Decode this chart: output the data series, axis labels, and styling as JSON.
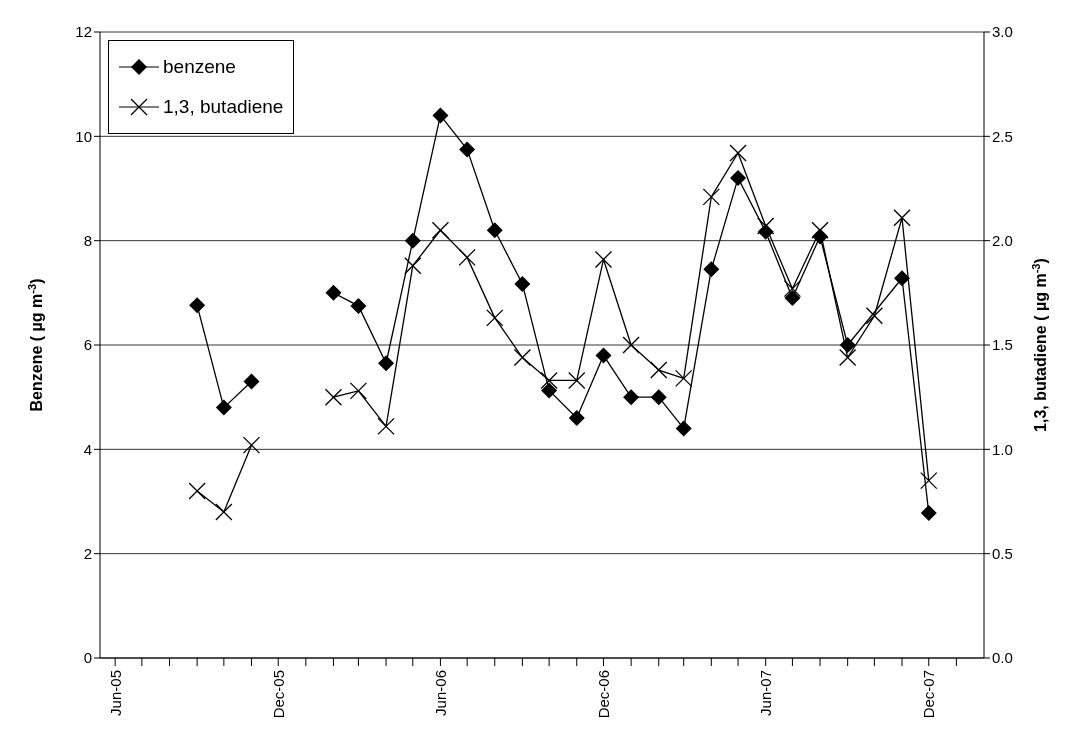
{
  "chart_data": {
    "type": "line",
    "ylabel": "Benzene ( µg m$^{-3}$)",
    "y2label": "1,3, butadiene ( µg m$^{-3}$)",
    "xlim": [
      "2005-05-15",
      "2008-02-01"
    ],
    "xticks": [
      {
        "value": "2005-06",
        "label": "Jun-05"
      },
      {
        "value": "2005-07",
        "label": null
      },
      {
        "value": "2005-08",
        "label": null
      },
      {
        "value": "2005-09",
        "label": null
      },
      {
        "value": "2005-10",
        "label": null
      },
      {
        "value": "2005-11",
        "label": null
      },
      {
        "value": "2005-12",
        "label": "Dec-05"
      },
      {
        "value": "2006-01",
        "label": null
      },
      {
        "value": "2006-02",
        "label": null
      },
      {
        "value": "2006-03",
        "label": null
      },
      {
        "value": "2006-04",
        "label": null
      },
      {
        "value": "2006-05",
        "label": null
      },
      {
        "value": "2006-06",
        "label": "Jun-06"
      },
      {
        "value": "2006-07",
        "label": null
      },
      {
        "value": "2006-08",
        "label": null
      },
      {
        "value": "2006-09",
        "label": null
      },
      {
        "value": "2006-10",
        "label": null
      },
      {
        "value": "2006-11",
        "label": null
      },
      {
        "value": "2006-12",
        "label": "Dec-06"
      },
      {
        "value": "2007-01",
        "label": null
      },
      {
        "value": "2007-02",
        "label": null
      },
      {
        "value": "2007-03",
        "label": null
      },
      {
        "value": "2007-04",
        "label": null
      },
      {
        "value": "2007-05",
        "label": null
      },
      {
        "value": "2007-06",
        "label": "Jun-07"
      },
      {
        "value": "2007-07",
        "label": null
      },
      {
        "value": "2007-08",
        "label": null
      },
      {
        "value": "2007-09",
        "label": null
      },
      {
        "value": "2007-10",
        "label": null
      },
      {
        "value": "2007-11",
        "label": null
      },
      {
        "value": "2007-12",
        "label": "Dec-07"
      },
      {
        "value": "2008-01",
        "label": null
      }
    ],
    "ylim": [
      0,
      12
    ],
    "yticks": [
      0,
      2,
      4,
      6,
      8,
      10,
      12
    ],
    "y2lim": [
      0,
      3
    ],
    "y2ticks": [
      {
        "value": 0,
        "label": "0.0"
      },
      {
        "value": 0.5,
        "label": "0.5"
      },
      {
        "value": 1,
        "label": "1.0"
      },
      {
        "value": 1.5,
        "label": "1.5"
      },
      {
        "value": 2,
        "label": "2.0"
      },
      {
        "value": 2.5,
        "label": "2.5"
      },
      {
        "value": 3,
        "label": "3.0"
      }
    ],
    "grid": "y",
    "legend": "top left",
    "line_style": "solid",
    "series": [
      {
        "name": "benzene",
        "color": "#000000",
        "marker": "diamond",
        "x": [
          "2005-09",
          "2005-10",
          "2005-11",
          "2006-01",
          "2006-02",
          "2006-03",
          "2006-04",
          "2006-05",
          "2006-06",
          "2006-07",
          "2006-08",
          "2006-09",
          "2006-10",
          "2006-11",
          "2006-12",
          "2007-01",
          "2007-02",
          "2007-03",
          "2007-04",
          "2007-05",
          "2007-06",
          "2007-07",
          "2007-08",
          "2007-09",
          "2007-11",
          "2007-12"
        ],
        "values": [
          6.76,
          4.8,
          5.3,
          null,
          7.0,
          6.75,
          5.65,
          8.0,
          10.4,
          9.75,
          8.2,
          7.17,
          5.13,
          4.6,
          5.8,
          5.0,
          5.0,
          4.4,
          7.45,
          9.2,
          8.17,
          6.9,
          8.08,
          6.0,
          7.28,
          2.78
        ]
      },
      {
        "name": "1,3, butadiene",
        "color": "#000000",
        "marker": "cross",
        "axis": "y2",
        "x": [
          "2005-09",
          "2005-10",
          "2005-11",
          "2006-01",
          "2006-02",
          "2006-03",
          "2006-04",
          "2006-05",
          "2006-06",
          "2006-07",
          "2006-08",
          "2006-09",
          "2006-10",
          "2006-11",
          "2006-12",
          "2007-01",
          "2007-02",
          "2007-03",
          "2007-04",
          "2007-05",
          "2007-06",
          "2007-07",
          "2007-08",
          "2007-09",
          "2007-10",
          "2007-11",
          "2007-12"
        ],
        "values": [
          0.8,
          0.7,
          1.02,
          null,
          1.25,
          1.28,
          1.11,
          1.88,
          2.05,
          1.92,
          1.63,
          1.44,
          1.33,
          1.33,
          1.91,
          1.5,
          1.38,
          1.34,
          2.21,
          2.42,
          2.07,
          1.77,
          2.05,
          1.44,
          1.64,
          2.11,
          0.85
        ]
      }
    ]
  }
}
